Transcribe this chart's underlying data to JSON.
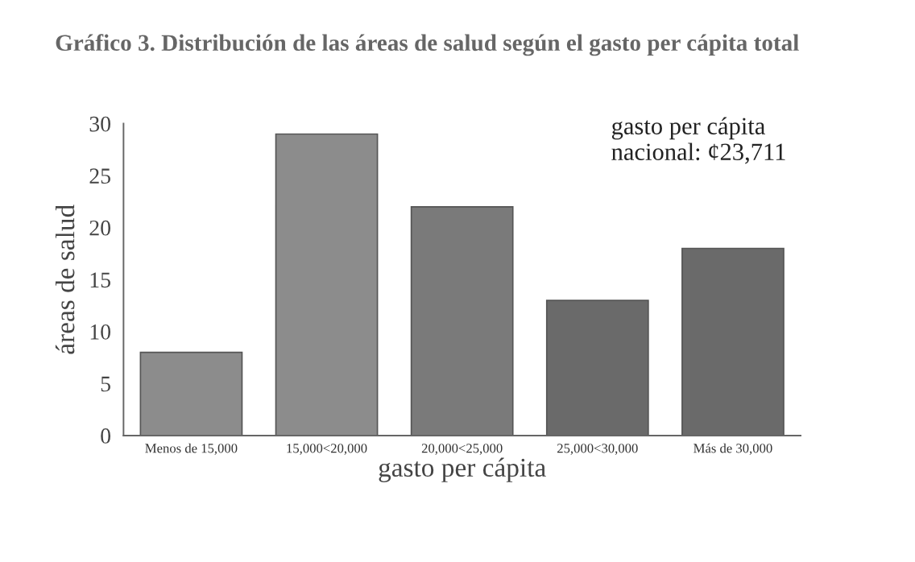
{
  "chart_data": {
    "type": "bar",
    "title": "Gráfico 3. Distribución de las áreas de salud según el gasto per cápita total",
    "xlabel": "gasto per cápita",
    "ylabel": "áreas de salud",
    "categories": [
      "Menos de 15,000",
      "15,000<20,000",
      "20,000<25,000",
      "25,000<30,000",
      "Más de 30,000"
    ],
    "values": [
      8,
      29,
      22,
      13,
      18
    ],
    "colors": [
      "#8c8c8c",
      "#8c8c8c",
      "#7a7a7a",
      "#6a6a6a",
      "#6a6a6a"
    ],
    "ylim": [
      0,
      30
    ],
    "yticks": [
      0,
      5,
      10,
      15,
      20,
      25,
      30
    ],
    "grid": false,
    "legend": false,
    "annotations": [
      "gasto per cápita\nnacional: ¢23,711"
    ]
  }
}
